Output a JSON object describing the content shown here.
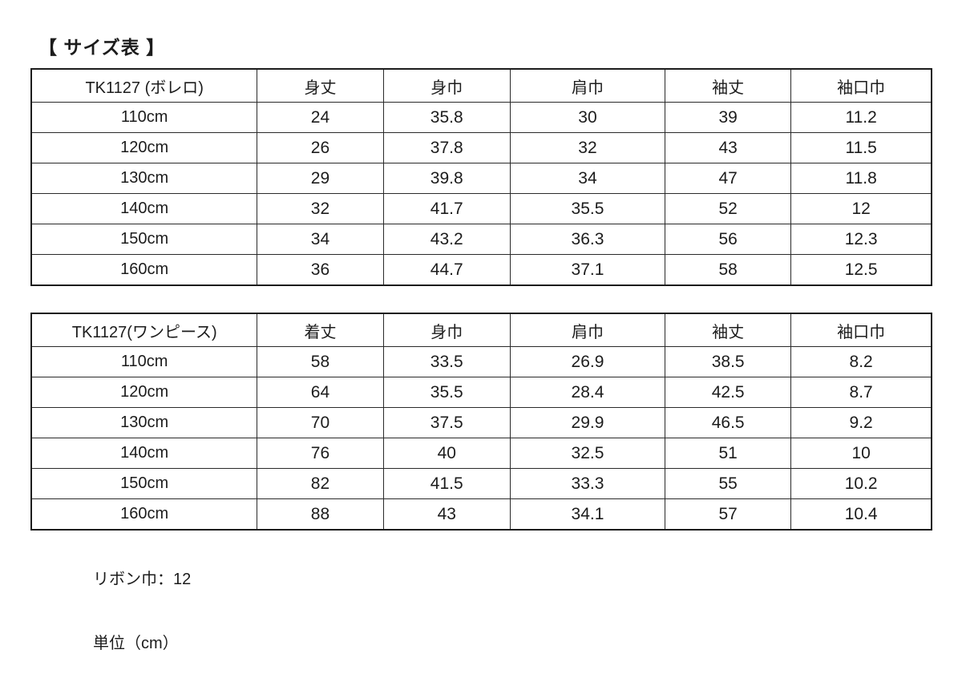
{
  "page": {
    "title": "【 サイズ表 】",
    "background_color": "#ffffff",
    "text_color": "#1c1c1c",
    "border_color": "#1c1c1c"
  },
  "tables": [
    {
      "title_cell": "TK1127 (ボレロ)",
      "columns": [
        "TK1127 (ボレロ)",
        "身丈",
        "身巾",
        "肩巾",
        "袖丈",
        "袖口巾"
      ],
      "rows": [
        {
          "size": "110cm",
          "values": [
            "24",
            "35.8",
            "30",
            "39",
            "11.2"
          ]
        },
        {
          "size": "120cm",
          "values": [
            "26",
            "37.8",
            "32",
            "43",
            "11.5"
          ]
        },
        {
          "size": "130cm",
          "values": [
            "29",
            "39.8",
            "34",
            "47",
            "11.8"
          ]
        },
        {
          "size": "140cm",
          "values": [
            "32",
            "41.7",
            "35.5",
            "52",
            "12"
          ]
        },
        {
          "size": "150cm",
          "values": [
            "34",
            "43.2",
            "36.3",
            "56",
            "12.3"
          ]
        },
        {
          "size": "160cm",
          "values": [
            "36",
            "44.7",
            "37.1",
            "58",
            "12.5"
          ]
        }
      ]
    },
    {
      "title_cell": "TK1127(ワンピース)",
      "columns": [
        "TK1127(ワンピース)",
        "着丈",
        "身巾",
        "肩巾",
        "袖丈",
        "袖口巾"
      ],
      "rows": [
        {
          "size": "110cm",
          "values": [
            "58",
            "33.5",
            "26.9",
            "38.5",
            "8.2"
          ]
        },
        {
          "size": "120cm",
          "values": [
            "64",
            "35.5",
            "28.4",
            "42.5",
            "8.7"
          ]
        },
        {
          "size": "130cm",
          "values": [
            "70",
            "37.5",
            "29.9",
            "46.5",
            "9.2"
          ]
        },
        {
          "size": "140cm",
          "values": [
            "76",
            "40",
            "32.5",
            "51",
            "10"
          ]
        },
        {
          "size": "150cm",
          "values": [
            "82",
            "41.5",
            "33.3",
            "55",
            "10.2"
          ]
        },
        {
          "size": "160cm",
          "values": [
            "88",
            "43",
            "34.1",
            "57",
            "10.4"
          ]
        }
      ]
    }
  ],
  "notes": {
    "ribbon_width": "リボン巾：12",
    "unit": "単位（cm）"
  }
}
